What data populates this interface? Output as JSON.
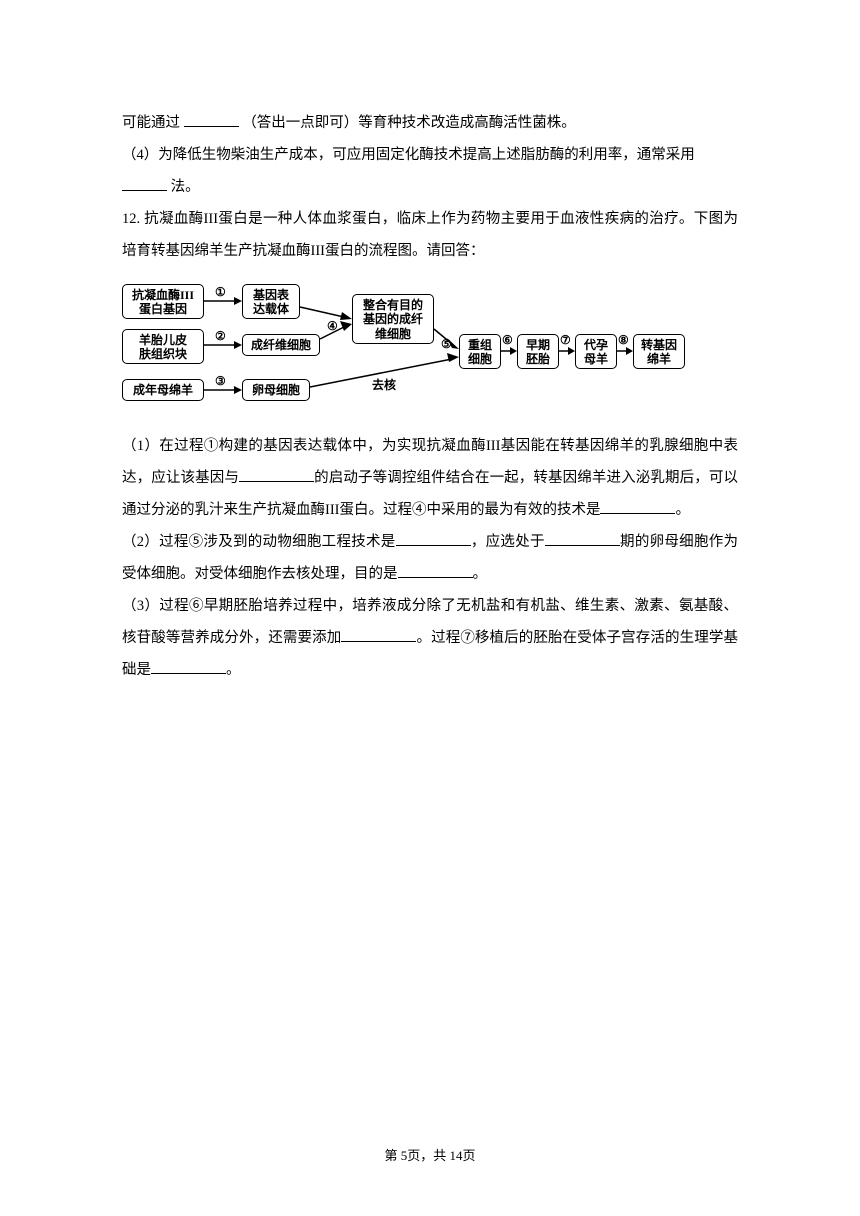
{
  "page": {
    "current": "5",
    "total": "14",
    "footer_prefix": "第 ",
    "footer_mid": "页，共 ",
    "footer_suffix": "页"
  },
  "q11_continued": {
    "line1_a": "可能通过 ",
    "line1_b": " （答出一点即可）等育种技术改造成高酶活性菌株。",
    "line2": "（4）为降低生物柴油生产成本，可应用固定化酶技术提高上述脂肪酶的利用率，通常采用",
    "line3_b": " 法。"
  },
  "q12": {
    "number": "12.",
    "intro": "    抗凝血酶III蛋白是一种人体血浆蛋白，临床上作为药物主要用于血液性疾病的治疗。下图为培育转基因绵羊生产抗凝血酶III蛋白的流程图。请回答：",
    "sub1_a": "（1）在过程①构建的基因表达载体中，为实现抗凝血酶III基因能在转基因绵羊的乳腺细胞中表达，应让该基因与",
    "sub1_b": "的启动子等调控组件结合在一起，转基因绵羊进入泌乳期后，可以通过分泌的乳汁来生产抗凝血酶III蛋白。过程④中采用的最为有效的技术是",
    "sub1_c": "。",
    "sub2_a": "（2）过程⑤涉及到的动物细胞工程技术是",
    "sub2_b": "，应选处于",
    "sub2_c": "期的卵母细胞作为受体细胞。对受体细胞作去核处理，目的是",
    "sub2_d": "。",
    "sub3_a": "（3）过程⑥早期胚胎培养过程中，培养液成分除了无机盐和有机盐、维生素、激素、氨基酸、核苷酸等营养成分外，还需要添加",
    "sub3_b": "。过程⑦移植后的胚胎在受体子宫存活的生理学基础是",
    "sub3_c": "。"
  },
  "diagram": {
    "boxes": {
      "box1": "抗凝血酶III\n蛋白基因",
      "box2": "基因表\n达载体",
      "box3": "羊胎儿皮\n肤组织块",
      "box4": "成纤维细胞",
      "box5": "成年母绵羊",
      "box6": "卵母细胞",
      "box7": "整合有目的\n基因的成纤\n维细胞",
      "box8": "重组\n细胞",
      "box9": "早期\n胚胎",
      "box10": "代孕\n母羊",
      "box11": "转基因\n绵羊"
    },
    "labels": {
      "l1": "①",
      "l2": "②",
      "l3": "③",
      "l4": "④",
      "l5": "⑤",
      "l6": "⑥",
      "l7": "⑦",
      "l8": "⑧",
      "qh": "去核"
    },
    "style": {
      "box_border_color": "#000000",
      "box_border_width": 1.5,
      "box_border_radius": 5,
      "box_font_size": 12,
      "box_font_weight": "bold",
      "label_font_size": 12,
      "arrow_color": "#000000"
    }
  }
}
